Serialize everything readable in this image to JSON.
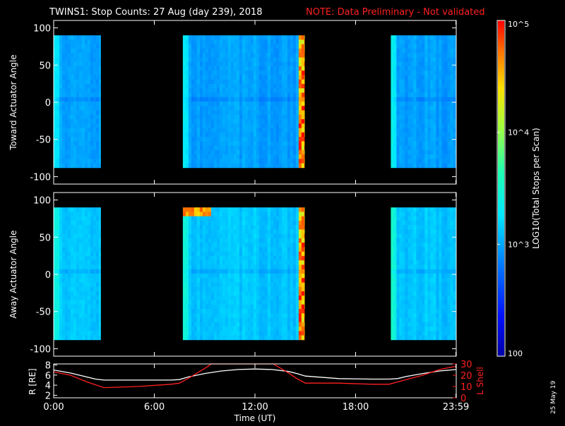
{
  "header": {
    "title": "TWINS1: Stop Counts: 27 Aug (day 239), 2018",
    "note": "NOTE: Data Preliminary - Not validated"
  },
  "date_stamp": "25 May 19",
  "colors": {
    "background": "#000000",
    "foreground": "#ffffff",
    "note": "#ff2020",
    "r_line": "#ffffff",
    "l_shell_line": "#ff2020"
  },
  "colorbar": {
    "label": "LOG10(Total Stops per Scan)",
    "ticks": [
      "10^5",
      "10^4",
      "10^3",
      "100"
    ],
    "min": 100,
    "max": 100000,
    "scale": "log",
    "colormap": "rainbow (blue-cyan-green-yellow-red)"
  },
  "chart_data": [
    {
      "type": "heatmap",
      "name": "toward",
      "ylabel": "Toward Actuator Angle",
      "yticks": [
        100,
        50,
        0,
        -50,
        -100
      ],
      "ylim": [
        -110,
        110
      ],
      "xlim": [
        0,
        24
      ],
      "data_y_range": [
        -88,
        90
      ],
      "data_intervals_hours": [
        [
          0,
          2.8
        ],
        [
          7.7,
          14.95
        ],
        [
          20.1,
          24
        ]
      ],
      "saturated_interval_hours": [
        14.5,
        14.95
      ],
      "typical_log_counts": 2.95
    },
    {
      "type": "heatmap",
      "name": "away",
      "ylabel": "Away Actuator Angle",
      "yticks": [
        100,
        50,
        0,
        -50,
        -100
      ],
      "ylim": [
        -110,
        110
      ],
      "xlim": [
        0,
        24
      ],
      "data_y_range": [
        -88,
        90
      ],
      "data_intervals_hours": [
        [
          0,
          2.8
        ],
        [
          7.7,
          14.95
        ],
        [
          20.1,
          24
        ]
      ],
      "saturated_interval_hours": [
        14.5,
        14.95
      ],
      "hot_spot": {
        "x_hours": [
          7.7,
          9.3
        ],
        "y": [
          76,
          92
        ]
      },
      "typical_log_counts": 3.1
    },
    {
      "type": "line",
      "name": "orbit",
      "ylabel_left": "R [RE]",
      "ylabel_right": "L Shell",
      "xlabel": "Time (UT)",
      "xticks": [
        "0:00",
        "6:00",
        "12:00",
        "18:00",
        "23:59"
      ],
      "xtick_hours": [
        0,
        6,
        12,
        18,
        23.98
      ],
      "yticks_left": [
        2,
        4,
        6,
        8
      ],
      "ylim_left": [
        1.5,
        8.2
      ],
      "yticks_right": [
        0,
        10,
        20,
        30
      ],
      "ylim_right": [
        0,
        30
      ],
      "series": [
        {
          "axis": "left",
          "x": [
            0,
            1,
            2,
            2.5,
            3,
            5,
            7,
            7.5,
            8,
            9,
            10,
            11,
            12,
            13,
            14,
            14.5,
            15,
            17,
            19,
            20,
            20.5,
            21,
            22,
            23,
            24
          ],
          "values": [
            7.0,
            6.4,
            5.6,
            5.2,
            5.0,
            5.0,
            5.0,
            5.1,
            5.6,
            6.3,
            6.8,
            7.1,
            7.2,
            7.1,
            6.7,
            6.3,
            5.8,
            5.3,
            5.2,
            5.2,
            5.3,
            5.7,
            6.3,
            6.8,
            7.1
          ]
        },
        {
          "axis": "right",
          "x": [
            0,
            1,
            2,
            3,
            5,
            7,
            7.5,
            8,
            9,
            9.4,
            13.1,
            14,
            14.5,
            15,
            17,
            19,
            20,
            21,
            22,
            23,
            24
          ],
          "values": [
            23,
            20,
            14,
            9,
            10,
            12,
            13,
            17,
            26,
            31,
            31,
            22,
            17,
            13,
            13,
            12,
            12,
            16,
            20,
            25,
            28
          ]
        }
      ]
    }
  ]
}
